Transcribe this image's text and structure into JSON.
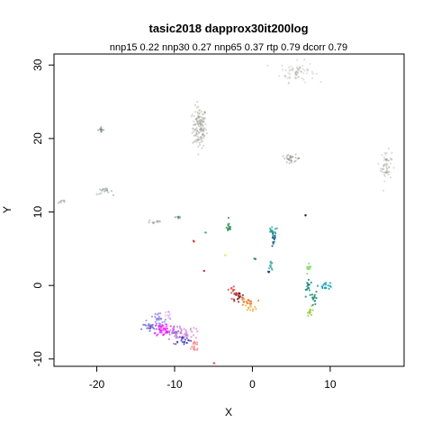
{
  "chart_data": {
    "type": "scatter",
    "title": "tasic2018 dapprox30it200log",
    "subtitle": "nnp15 0.22 nnp30 0.27 nnp65 0.37 rtp 0.79 dcorr 0.79",
    "xlabel": "X",
    "ylabel": "Y",
    "xlim": [
      -25.5,
      19.5
    ],
    "ylim": [
      -11.0,
      31.5
    ],
    "x_ticks": [
      -20,
      -10,
      0,
      10
    ],
    "y_ticks": [
      -10,
      0,
      10,
      20,
      30
    ],
    "x_tick_labels": [
      "-20",
      "-10",
      "0",
      "10"
    ],
    "y_tick_labels": [
      "-10",
      "0",
      "10",
      "20",
      "30"
    ],
    "grid": false,
    "legend": "none",
    "clusters": [
      {
        "x": -6.8,
        "y": 21.5,
        "sx": 0.45,
        "sy": 1.4,
        "n": 140,
        "color": "#8c8c84",
        "alpha": 0.35
      },
      {
        "x": 5.8,
        "y": 29.1,
        "sx": 1.1,
        "sy": 0.7,
        "n": 70,
        "color": "#9a9a92",
        "alpha": 0.3
      },
      {
        "x": 17.2,
        "y": 16.3,
        "sx": 0.35,
        "sy": 1.0,
        "n": 60,
        "color": "#8e8e86",
        "alpha": 0.3
      },
      {
        "x": 5.0,
        "y": 17.3,
        "sx": 0.6,
        "sy": 0.25,
        "n": 30,
        "color": "#777770",
        "alpha": 0.4
      },
      {
        "x": -19.5,
        "y": 21.2,
        "sx": 0.2,
        "sy": 0.15,
        "n": 12,
        "color": "#6f7a78",
        "alpha": 0.5
      },
      {
        "x": -19.0,
        "y": 12.8,
        "sx": 0.5,
        "sy": 0.2,
        "n": 18,
        "color": "#7f9490",
        "alpha": 0.5
      },
      {
        "x": -24.5,
        "y": 11.4,
        "sx": 0.3,
        "sy": 0.15,
        "n": 8,
        "color": "#8f9896",
        "alpha": 0.5
      },
      {
        "x": -12.5,
        "y": 8.7,
        "sx": 0.5,
        "sy": 0.2,
        "n": 12,
        "color": "#8fa097",
        "alpha": 0.55
      },
      {
        "x": -9.5,
        "y": 9.3,
        "sx": 0.2,
        "sy": 0.15,
        "n": 8,
        "color": "#5f8a6f",
        "alpha": 0.6
      },
      {
        "x": -3.0,
        "y": 7.9,
        "sx": 0.15,
        "sy": 0.4,
        "n": 14,
        "color": "#2e8b57",
        "alpha": 0.8
      },
      {
        "x": 2.6,
        "y": 7.3,
        "sx": 0.35,
        "sy": 0.3,
        "n": 18,
        "color": "#2aa198",
        "alpha": 0.8
      },
      {
        "x": 2.7,
        "y": 6.1,
        "sx": 0.15,
        "sy": 0.5,
        "n": 12,
        "color": "#1f5f8f",
        "alpha": 0.85
      },
      {
        "x": 6.8,
        "y": 9.5,
        "sx": 0.05,
        "sy": 0.05,
        "n": 2,
        "color": "#1a1a1a",
        "alpha": 0.9
      },
      {
        "x": -7.5,
        "y": 6.0,
        "sx": 0.05,
        "sy": 0.05,
        "n": 2,
        "color": "#d62728",
        "alpha": 0.9
      },
      {
        "x": -6.0,
        "y": 7.2,
        "sx": 0.05,
        "sy": 0.05,
        "n": 2,
        "color": "#3cb371",
        "alpha": 0.8
      },
      {
        "x": -3.5,
        "y": 4.1,
        "sx": 0.06,
        "sy": 0.06,
        "n": 2,
        "color": "#e5e54a",
        "alpha": 0.9
      },
      {
        "x": 0.3,
        "y": 3.6,
        "sx": 0.08,
        "sy": 0.08,
        "n": 3,
        "color": "#2e7d6b",
        "alpha": 0.8
      },
      {
        "x": 2.4,
        "y": 2.6,
        "sx": 0.1,
        "sy": 0.3,
        "n": 10,
        "color": "#3fa7a0",
        "alpha": 0.8
      },
      {
        "x": 2.1,
        "y": 1.9,
        "sx": 0.06,
        "sy": 0.06,
        "n": 3,
        "color": "#1f3f8f",
        "alpha": 0.9
      },
      {
        "x": -6.2,
        "y": 2.0,
        "sx": 0.05,
        "sy": 0.05,
        "n": 2,
        "color": "#d62728",
        "alpha": 0.9
      },
      {
        "x": 7.2,
        "y": 2.0,
        "sx": 0.2,
        "sy": 0.4,
        "n": 12,
        "color": "#7fdc6b",
        "alpha": 0.8
      },
      {
        "x": 7.2,
        "y": 0.0,
        "sx": 0.15,
        "sy": 0.6,
        "n": 16,
        "color": "#1f8a8a",
        "alpha": 0.85
      },
      {
        "x": 8.0,
        "y": -1.8,
        "sx": 0.2,
        "sy": 0.5,
        "n": 14,
        "color": "#138a6e",
        "alpha": 0.85
      },
      {
        "x": 9.4,
        "y": 0.0,
        "sx": 0.45,
        "sy": 0.25,
        "n": 18,
        "color": "#14a0b4",
        "alpha": 0.85
      },
      {
        "x": 7.5,
        "y": -3.5,
        "sx": 0.2,
        "sy": 0.3,
        "n": 12,
        "color": "#9acd32",
        "alpha": 0.8
      },
      {
        "x": -1.8,
        "y": -1.5,
        "sx": 0.4,
        "sy": 0.3,
        "n": 20,
        "color": "#8b1a1a",
        "alpha": 0.8
      },
      {
        "x": -2.5,
        "y": -0.6,
        "sx": 0.25,
        "sy": 0.3,
        "n": 12,
        "color": "#e04040",
        "alpha": 0.8
      },
      {
        "x": -0.8,
        "y": -2.3,
        "sx": 0.5,
        "sy": 0.3,
        "n": 20,
        "color": "#e87a2a",
        "alpha": 0.8
      },
      {
        "x": -0.2,
        "y": -3.0,
        "sx": 0.4,
        "sy": 0.2,
        "n": 12,
        "color": "#f2a93b",
        "alpha": 0.8
      },
      {
        "x": -12.2,
        "y": -4.8,
        "sx": 0.7,
        "sy": 0.6,
        "n": 30,
        "color": "#8d7fe0",
        "alpha": 0.75
      },
      {
        "x": -13.0,
        "y": -5.8,
        "sx": 0.6,
        "sy": 0.4,
        "n": 25,
        "color": "#6a5acd",
        "alpha": 0.75
      },
      {
        "x": -11.3,
        "y": -6.0,
        "sx": 0.7,
        "sy": 0.5,
        "n": 40,
        "color": "#ff00ff",
        "alpha": 0.7
      },
      {
        "x": -10.0,
        "y": -6.5,
        "sx": 0.6,
        "sy": 0.5,
        "n": 30,
        "color": "#9a6ad8",
        "alpha": 0.7
      },
      {
        "x": -8.5,
        "y": -6.3,
        "sx": 0.6,
        "sy": 0.5,
        "n": 30,
        "color": "#d07ad8",
        "alpha": 0.7
      },
      {
        "x": -9.0,
        "y": -7.4,
        "sx": 0.6,
        "sy": 0.3,
        "n": 20,
        "color": "#3a2fb0",
        "alpha": 0.75
      },
      {
        "x": -7.5,
        "y": -8.3,
        "sx": 0.4,
        "sy": 0.5,
        "n": 20,
        "color": "#f08a8a",
        "alpha": 0.75
      },
      {
        "x": -11.0,
        "y": -4.0,
        "sx": 0.2,
        "sy": 0.2,
        "n": 8,
        "color": "#f4a0f4",
        "alpha": 0.6
      },
      {
        "x": -5.0,
        "y": -10.6,
        "sx": 0.05,
        "sy": 0.05,
        "n": 2,
        "color": "#e04040",
        "alpha": 0.8
      }
    ]
  }
}
